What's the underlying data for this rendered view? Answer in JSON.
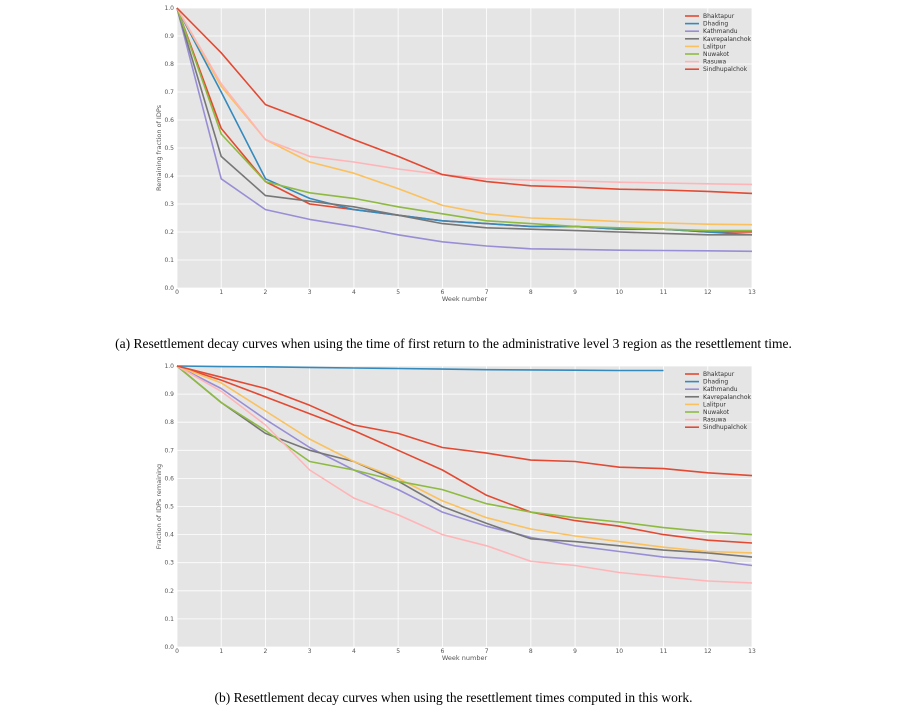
{
  "colors": [
    "#e24a33",
    "#348abd",
    "#988ed5",
    "#777777",
    "#fbc15e",
    "#8eba42",
    "#ffb5b8",
    "#e24a33"
  ],
  "captions": {
    "a": "(a) Resettlement decay curves when using the time of first return to the administrative level 3 region as the resettlement time.",
    "b": "(b) Resettlement decay curves when using the resettlement times computed in this work."
  },
  "chart_data": [
    {
      "type": "line",
      "title": "",
      "xlabel": "Week number",
      "ylabel": "Remaining fraction of IDPs",
      "xlim": [
        0,
        13
      ],
      "ylim": [
        0.0,
        1.0
      ],
      "xticks": [
        0,
        1,
        2,
        3,
        4,
        5,
        6,
        7,
        8,
        9,
        10,
        11,
        12,
        13
      ],
      "yticks": [
        0.0,
        0.1,
        0.2,
        0.3,
        0.4,
        0.5,
        0.6,
        0.7,
        0.8,
        0.9,
        1.0
      ],
      "grid": true,
      "legend": "top-right",
      "series": [
        {
          "name": "Bhaktapur",
          "x": [
            0,
            1,
            2,
            3,
            4,
            5,
            6,
            7,
            8,
            9,
            10,
            11,
            12,
            13
          ],
          "values": [
            1.0,
            0.57,
            0.38,
            0.3,
            0.28,
            0.26,
            0.24,
            0.23,
            0.22,
            0.22,
            0.21,
            0.21,
            0.2,
            0.2
          ]
        },
        {
          "name": "Dhading",
          "x": [
            0,
            1,
            2,
            3,
            4,
            5,
            6,
            7,
            8,
            9,
            10,
            11,
            12,
            13
          ],
          "values": [
            1.0,
            0.7,
            0.39,
            0.32,
            0.28,
            0.26,
            0.24,
            0.23,
            0.22,
            0.22,
            0.21,
            0.21,
            0.2,
            0.19
          ]
        },
        {
          "name": "Kathmandu",
          "x": [
            0,
            1,
            2,
            3,
            4,
            5,
            6,
            7,
            8,
            9,
            10,
            11,
            12,
            13
          ],
          "values": [
            1.0,
            0.39,
            0.28,
            0.245,
            0.22,
            0.19,
            0.165,
            0.15,
            0.14,
            0.138,
            0.135,
            0.134,
            0.133,
            0.131
          ]
        },
        {
          "name": "Kavrepalanchok",
          "x": [
            0,
            1,
            2,
            3,
            4,
            5,
            6,
            7,
            8,
            9,
            10,
            11,
            12,
            13
          ],
          "values": [
            1.0,
            0.47,
            0.33,
            0.31,
            0.29,
            0.26,
            0.23,
            0.215,
            0.21,
            0.205,
            0.2,
            0.195,
            0.19,
            0.19
          ]
        },
        {
          "name": "Lalitpur",
          "x": [
            0,
            1,
            2,
            3,
            4,
            5,
            6,
            7,
            8,
            9,
            10,
            11,
            12,
            13
          ],
          "values": [
            1.0,
            0.72,
            0.53,
            0.45,
            0.41,
            0.355,
            0.295,
            0.265,
            0.25,
            0.245,
            0.237,
            0.232,
            0.228,
            0.226
          ]
        },
        {
          "name": "Nuwakot",
          "x": [
            0,
            1,
            2,
            3,
            4,
            5,
            6,
            7,
            8,
            9,
            10,
            11,
            12,
            13
          ],
          "values": [
            1.0,
            0.55,
            0.38,
            0.34,
            0.32,
            0.29,
            0.265,
            0.24,
            0.23,
            0.22,
            0.215,
            0.21,
            0.205,
            0.205
          ]
        },
        {
          "name": "Rasuwa",
          "x": [
            0,
            1,
            2,
            3,
            4,
            5,
            6,
            7,
            8,
            9,
            10,
            11,
            12,
            13
          ],
          "values": [
            1.0,
            0.73,
            0.53,
            0.47,
            0.45,
            0.425,
            0.405,
            0.39,
            0.385,
            0.382,
            0.378,
            0.375,
            0.372,
            0.37
          ]
        },
        {
          "name": "Sindhupalchok",
          "x": [
            0,
            1,
            2,
            3,
            4,
            5,
            6,
            7,
            8,
            9,
            10,
            11,
            12,
            13
          ],
          "values": [
            1.0,
            0.84,
            0.655,
            0.595,
            0.53,
            0.47,
            0.405,
            0.38,
            0.365,
            0.36,
            0.353,
            0.35,
            0.345,
            0.338
          ]
        }
      ]
    },
    {
      "type": "line",
      "title": "",
      "xlabel": "Week number",
      "ylabel": "Fraction of IDPs remaining",
      "xlim": [
        0,
        13
      ],
      "ylim": [
        0.0,
        1.0
      ],
      "xticks": [
        0,
        1,
        2,
        3,
        4,
        5,
        6,
        7,
        8,
        9,
        10,
        11,
        12,
        13
      ],
      "yticks": [
        0.0,
        0.1,
        0.2,
        0.3,
        0.4,
        0.5,
        0.6,
        0.7,
        0.8,
        0.9,
        1.0
      ],
      "grid": true,
      "legend": "top-right",
      "series": [
        {
          "name": "Bhaktapur",
          "x": [
            0,
            1,
            2,
            3,
            4,
            5,
            6,
            7,
            8,
            9,
            10,
            11,
            12,
            13
          ],
          "values": [
            1.0,
            0.95,
            0.89,
            0.83,
            0.77,
            0.7,
            0.63,
            0.54,
            0.48,
            0.45,
            0.43,
            0.4,
            0.38,
            0.37
          ]
        },
        {
          "name": "Dhading",
          "x": [
            0,
            1,
            2,
            3,
            4,
            5,
            6,
            7,
            8,
            9,
            10,
            11
          ],
          "values": [
            1.0,
            0.998,
            0.997,
            0.995,
            0.993,
            0.991,
            0.989,
            0.987,
            0.986,
            0.985,
            0.984,
            0.984
          ]
        },
        {
          "name": "Kathmandu",
          "x": [
            0,
            1,
            2,
            3,
            4,
            5,
            6,
            7,
            8,
            9,
            10,
            11,
            12,
            13
          ],
          "values": [
            1.0,
            0.92,
            0.81,
            0.71,
            0.63,
            0.56,
            0.48,
            0.43,
            0.39,
            0.36,
            0.34,
            0.32,
            0.31,
            0.29
          ]
        },
        {
          "name": "Kavrepalanchok",
          "x": [
            0,
            1,
            2,
            3,
            4,
            5,
            6,
            7,
            8,
            9,
            10,
            11,
            12,
            13
          ],
          "values": [
            1.0,
            0.87,
            0.76,
            0.7,
            0.66,
            0.59,
            0.5,
            0.44,
            0.385,
            0.375,
            0.36,
            0.345,
            0.335,
            0.32
          ]
        },
        {
          "name": "Lalitpur",
          "x": [
            0,
            1,
            2,
            3,
            4,
            5,
            6,
            7,
            8,
            9,
            10,
            11,
            12,
            13
          ],
          "values": [
            1.0,
            0.94,
            0.84,
            0.74,
            0.66,
            0.6,
            0.52,
            0.46,
            0.42,
            0.395,
            0.375,
            0.355,
            0.34,
            0.335
          ]
        },
        {
          "name": "Nuwakot",
          "x": [
            0,
            1,
            2,
            3,
            4,
            5,
            6,
            7,
            8,
            9,
            10,
            11,
            12,
            13
          ],
          "values": [
            1.0,
            0.87,
            0.77,
            0.66,
            0.63,
            0.59,
            0.56,
            0.51,
            0.48,
            0.46,
            0.445,
            0.425,
            0.41,
            0.4
          ]
        },
        {
          "name": "Rasuwa",
          "x": [
            0,
            1,
            2,
            3,
            4,
            5,
            6,
            7,
            8,
            9,
            10,
            11,
            12,
            13
          ],
          "values": [
            1.0,
            0.91,
            0.79,
            0.63,
            0.53,
            0.47,
            0.4,
            0.36,
            0.305,
            0.29,
            0.265,
            0.25,
            0.235,
            0.228
          ]
        },
        {
          "name": "Sindhupalchok",
          "x": [
            0,
            1,
            2,
            3,
            4,
            5,
            6,
            7,
            8,
            9,
            10,
            11,
            12,
            13
          ],
          "values": [
            1.0,
            0.96,
            0.92,
            0.86,
            0.79,
            0.76,
            0.71,
            0.69,
            0.665,
            0.66,
            0.64,
            0.635,
            0.62,
            0.61
          ]
        }
      ]
    }
  ]
}
